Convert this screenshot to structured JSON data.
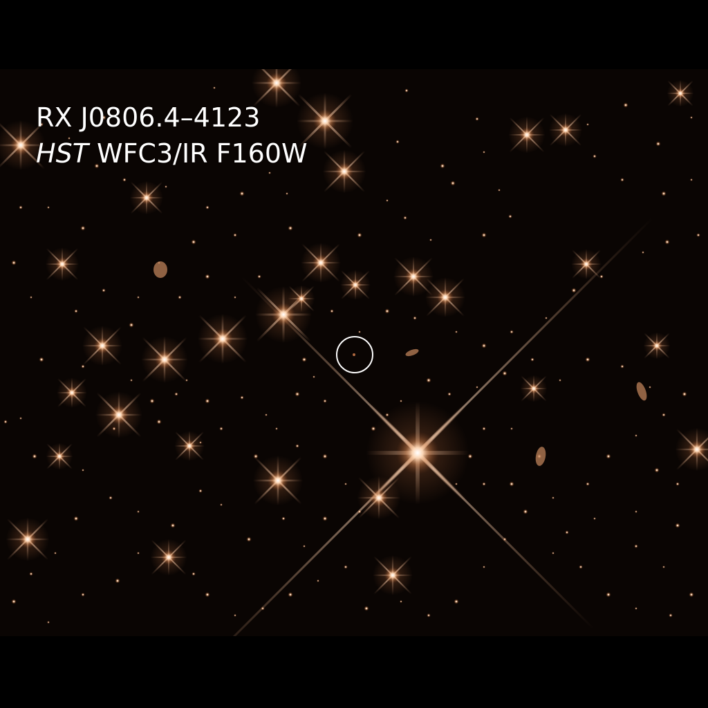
{
  "image": {
    "background_color": "#000000",
    "star_color": "#f0a878",
    "star_core_color": "#ffffff"
  },
  "caption": {
    "line1": "RX J0806.4–4123",
    "line2_instrument": "HST",
    "line2_rest": " WFC3/IR F160W"
  },
  "marker": {
    "shape": "circle",
    "color": "#ffffff"
  }
}
